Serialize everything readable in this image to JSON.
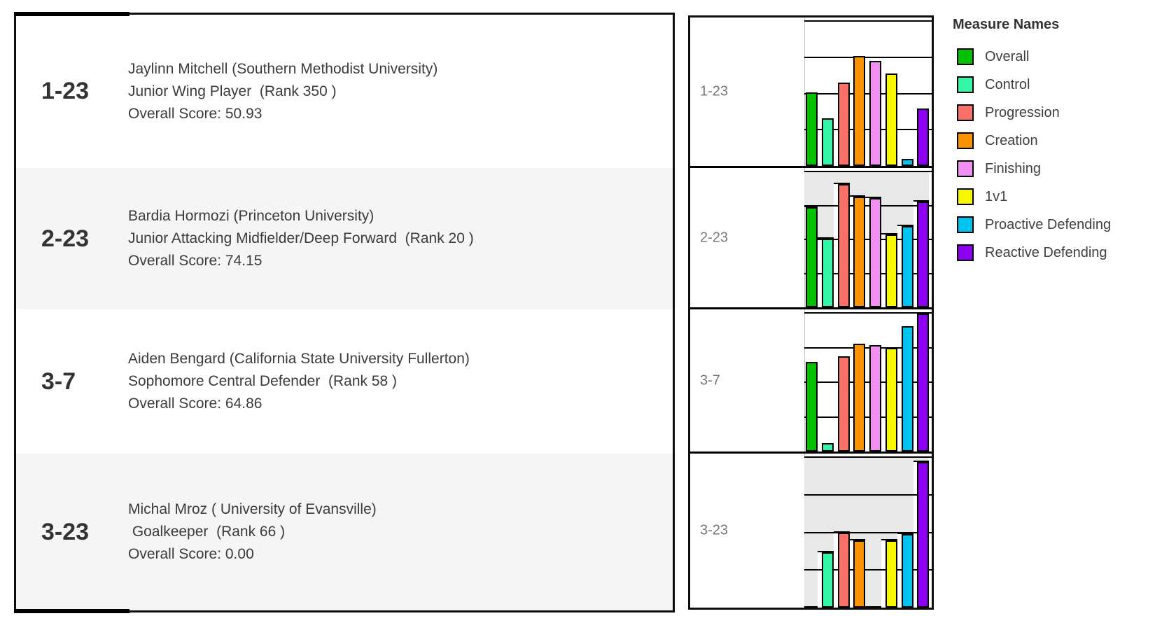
{
  "table": {
    "rows": [
      {
        "code": "1-23",
        "player": "Jaylinn Mitchell (Southern Methodist University)",
        "position": "Junior Wing Player  (Rank 350 )",
        "score": "Overall Score: 50.93"
      },
      {
        "code": "2-23",
        "player": "Bardia Hormozi (Princeton University)",
        "position": "Junior Attacking Midfielder/Deep Forward  (Rank 20 )",
        "score": "Overall Score: 74.15"
      },
      {
        "code": "3-7",
        "player": "Aiden Bengard (California State University Fullerton)",
        "position": "Sophomore Central Defender  (Rank 58 )",
        "score": "Overall Score: 64.86"
      },
      {
        "code": "3-23",
        "player": "Michal Mroz ( University of Evansville)",
        "position": " Goalkeeper  (Rank 66 )",
        "score": "Overall Score: 0.00"
      }
    ]
  },
  "chart_data": {
    "type": "bar",
    "title": "",
    "categories": [
      "Overall",
      "Control",
      "Progression",
      "Creation",
      "Finishing",
      "1v1",
      "Proactive Defending",
      "Reactive Defending"
    ],
    "measures": [
      {
        "name": "Overall",
        "color": "#03C003"
      },
      {
        "name": "Control",
        "color": "#33F7A6"
      },
      {
        "name": "Progression",
        "color": "#FA716A"
      },
      {
        "name": "Creation",
        "color": "#FB9200"
      },
      {
        "name": "Finishing",
        "color": "#F090F2"
      },
      {
        "name": "1v1",
        "color": "#F7F700"
      },
      {
        "name": "Proactive Defending",
        "color": "#00C3EE"
      },
      {
        "name": "Reactive Defending",
        "color": "#8C00F0"
      }
    ],
    "rows": [
      {
        "label": "1-23",
        "banded": false,
        "values": [
          51,
          33,
          58,
          76,
          73,
          64,
          5,
          40
        ]
      },
      {
        "label": "2-23",
        "banded": true,
        "values": [
          74,
          51,
          91,
          82,
          81,
          54,
          60,
          78
        ]
      },
      {
        "label": "3-7",
        "banded": false,
        "values": [
          65,
          6,
          69,
          78,
          77,
          75,
          91,
          100
        ]
      },
      {
        "label": "3-23",
        "banded": true,
        "values": [
          0,
          37,
          50,
          45,
          0,
          45,
          49,
          97
        ]
      }
    ],
    "ylim": [
      0,
      100
    ],
    "gridlines": [
      25,
      50,
      75,
      100
    ],
    "band_color": "#e8e8e8",
    "grid_on": true,
    "legend_position": "right"
  },
  "legend": {
    "title": "Measure Names",
    "items": [
      {
        "label": "Overall",
        "color": "#03C003"
      },
      {
        "label": "Control",
        "color": "#33F7A6"
      },
      {
        "label": "Progression",
        "color": "#FA716A"
      },
      {
        "label": "Creation",
        "color": "#FB9200"
      },
      {
        "label": "Finishing",
        "color": "#F090F2"
      },
      {
        "label": "1v1",
        "color": "#F7F700"
      },
      {
        "label": "Proactive Defending",
        "color": "#00C3EE"
      },
      {
        "label": "Reactive Defending",
        "color": "#8C00F0"
      }
    ]
  },
  "colors": {
    "row_band": "#f5f5f5",
    "chart_band": "#e8e8e8",
    "border": "#0d0d0d",
    "label_gray": "#777777"
  }
}
